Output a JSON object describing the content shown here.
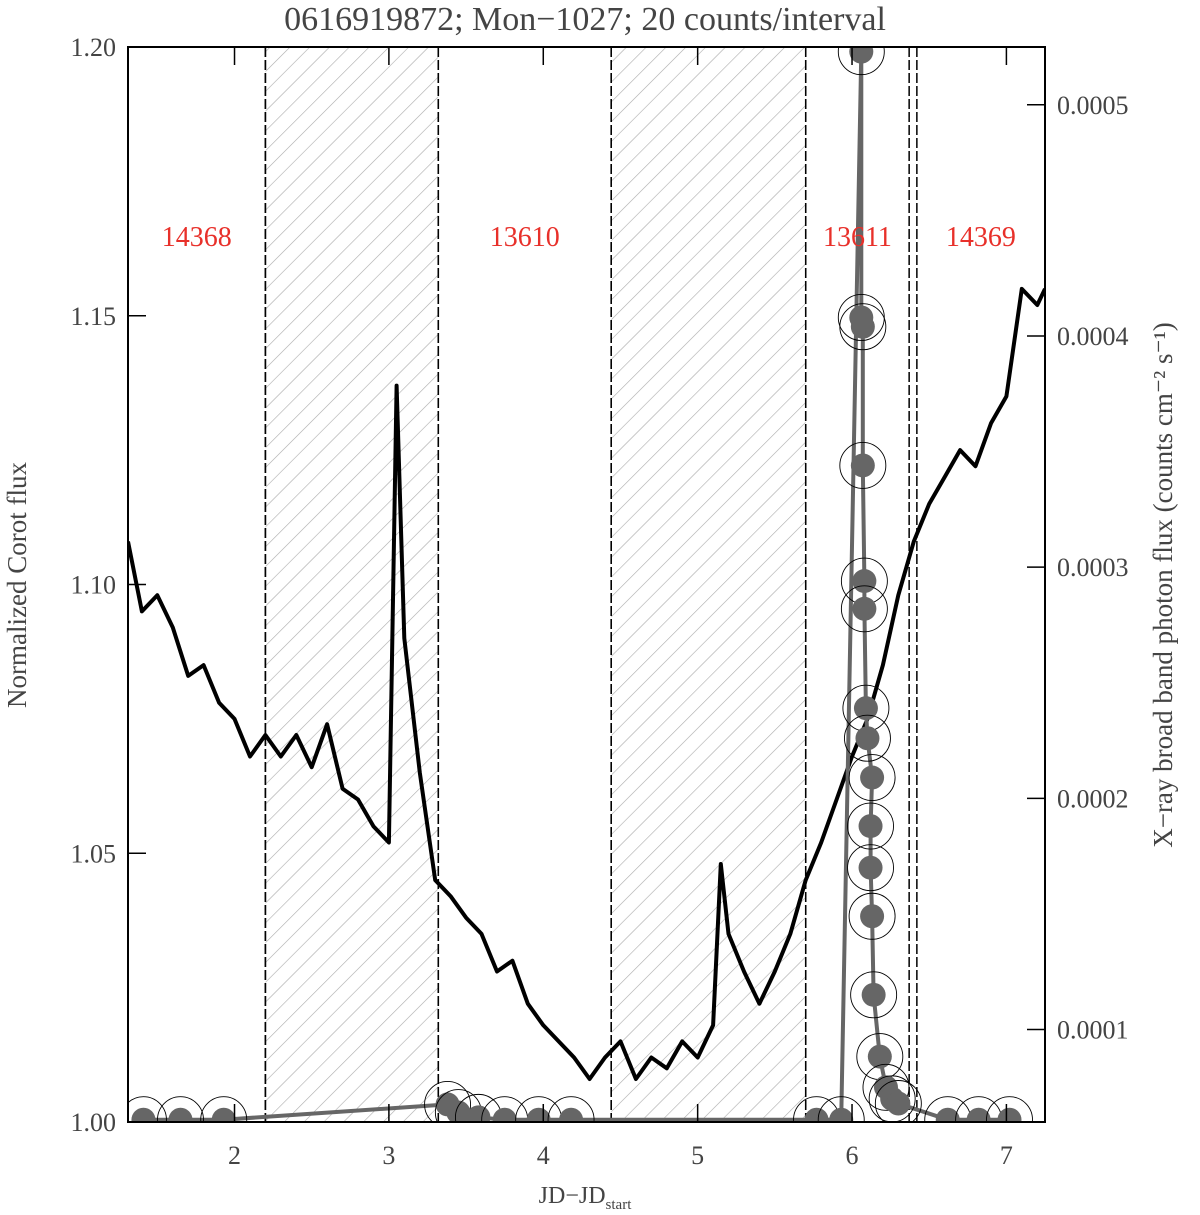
{
  "chart_data": {
    "type": "line",
    "title": "0616919872; Mon−1027; 20 counts/interval",
    "xlabel": "JD−JD",
    "xlabel_subscript": "start",
    "ylabel": "Normalized Corot flux",
    "y2label": "X−ray broad band photon flux (counts cm⁻² s⁻¹)",
    "xlim": [
      1.31,
      7.25
    ],
    "xticks": [
      2,
      3,
      4,
      5,
      6,
      7
    ],
    "ylim": [
      1.0,
      1.2
    ],
    "yticks": [
      {
        "value": 1.0,
        "label": "1.00"
      },
      1.05,
      {
        "value": 1.1,
        "label": "1.10"
      },
      1.15,
      {
        "value": 1.2,
        "label": "1.20"
      }
    ],
    "y2lim": [
      6e-05,
      0.000525
    ],
    "y2ticks": [
      0.0001,
      0.0002,
      0.0003,
      0.0004,
      0.0005
    ],
    "observations": [
      {
        "label": "14368",
        "start": 1.31,
        "end": 2.2
      },
      {
        "label": "13610",
        "start": 3.32,
        "end": 4.44
      },
      {
        "label": "13611",
        "start": 5.7,
        "end": 6.37
      },
      {
        "label": "14369",
        "start": 6.42,
        "end": 7.25
      }
    ],
    "gaps": [
      {
        "start": 2.2,
        "end": 3.32
      },
      {
        "start": 4.44,
        "end": 5.7
      }
    ],
    "label_color": "#e8302a",
    "series": [
      {
        "color": "#000000",
        "x": [
          1.31,
          1.4,
          1.5,
          1.6,
          1.7,
          1.8,
          1.9,
          2.0,
          2.1,
          2.2,
          2.3,
          2.4,
          2.5,
          2.6,
          2.7,
          2.8,
          2.9,
          3.0,
          3.05,
          3.1,
          3.2,
          3.3,
          3.4,
          3.5,
          3.6,
          3.7,
          3.8,
          3.9,
          4.0,
          4.1,
          4.2,
          4.3,
          4.4,
          4.5,
          4.6,
          4.7,
          4.8,
          4.9,
          5.0,
          5.1,
          5.15,
          5.2,
          5.3,
          5.4,
          5.5,
          5.6,
          5.7,
          5.8,
          5.9,
          6.0,
          6.1,
          6.2,
          6.3,
          6.4,
          6.5,
          6.6,
          6.7,
          6.8,
          6.9,
          7.0,
          7.1,
          7.2,
          7.25
        ],
        "values": [
          1.108,
          1.095,
          1.098,
          1.092,
          1.083,
          1.085,
          1.078,
          1.075,
          1.068,
          1.072,
          1.068,
          1.072,
          1.066,
          1.074,
          1.062,
          1.06,
          1.055,
          1.052,
          1.137,
          1.09,
          1.065,
          1.045,
          1.042,
          1.038,
          1.035,
          1.028,
          1.03,
          1.022,
          1.018,
          1.015,
          1.012,
          1.008,
          1.012,
          1.015,
          1.008,
          1.012,
          1.01,
          1.015,
          1.012,
          1.018,
          1.048,
          1.035,
          1.028,
          1.022,
          1.028,
          1.035,
          1.045,
          1.052,
          1.06,
          1.068,
          1.075,
          1.085,
          1.098,
          1.108,
          1.115,
          1.12,
          1.125,
          1.122,
          1.13,
          1.135,
          1.155,
          1.152,
          1.155
        ]
      },
      {
        "color": "#666666",
        "axis": "y2",
        "marker": "circle",
        "marker_rings": true,
        "x": [
          1.41,
          1.65,
          1.93,
          3.38,
          3.45,
          3.58,
          3.75,
          3.97,
          4.18,
          5.77,
          5.93,
          6.06,
          6.06,
          6.07,
          6.07,
          6.08,
          6.08,
          6.09,
          6.1,
          6.13,
          6.12,
          6.12,
          6.13,
          6.14,
          6.18,
          6.22,
          6.26,
          6.3,
          6.62,
          6.82,
          7.02
        ],
        "values": [
          6.1e-05,
          6.1e-05,
          6.1e-05,
          6.76e-05,
          6.41e-05,
          6.2e-05,
          6.1e-05,
          6.1e-05,
          6.1e-05,
          6.1e-05,
          6.1e-05,
          0.000523,
          0.000408,
          0.000404,
          0.000344,
          0.000294,
          0.000282,
          0.000239,
          0.000226,
          0.000209,
          0.000188,
          0.00017,
          0.000149,
          0.000115,
          8.83e-05,
          7.5e-05,
          7e-05,
          6.8e-05,
          6.1e-05,
          6.1e-05,
          6.1e-05
        ]
      }
    ]
  }
}
